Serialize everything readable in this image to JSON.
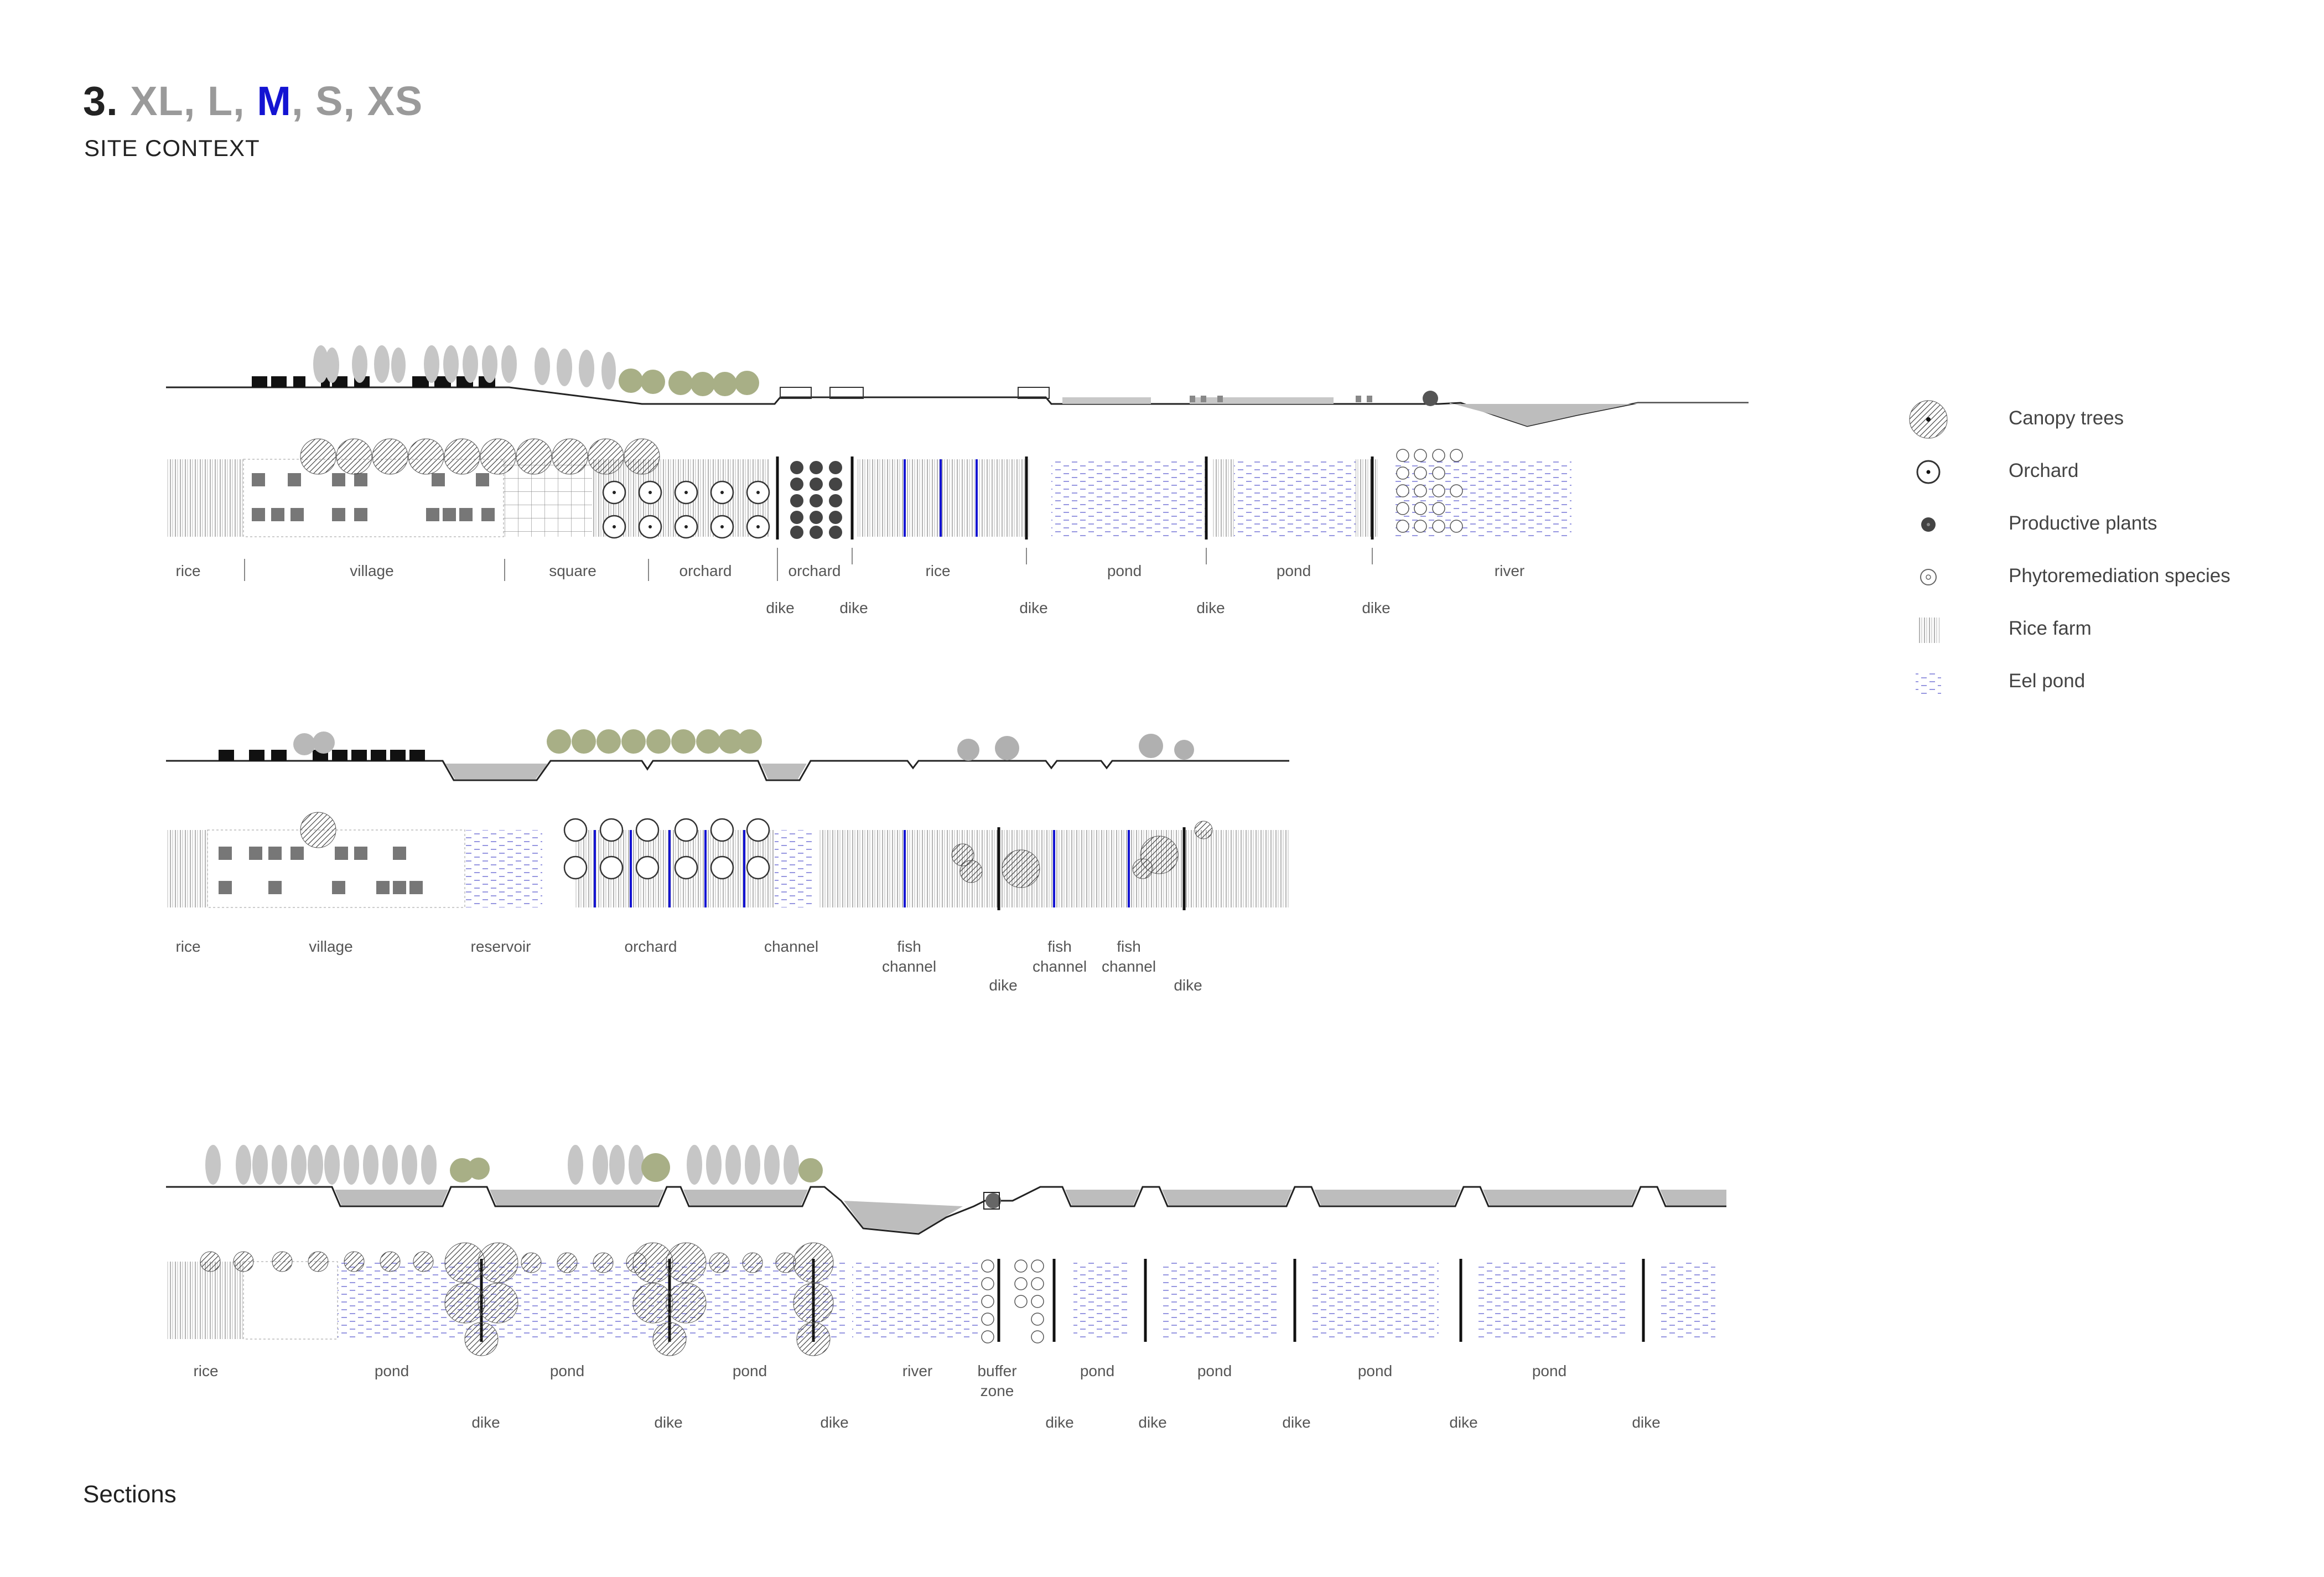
{
  "header": {
    "number": "3.",
    "sizes": [
      {
        "text": "XL",
        "active": false
      },
      {
        "text": "L",
        "active": false
      },
      {
        "text": "M",
        "active": true
      },
      {
        "text": "S",
        "active": false
      },
      {
        "text": "XS",
        "active": false
      }
    ],
    "separator": ", ",
    "subtitle": "SITE CONTEXT"
  },
  "footer": {
    "caption": "Sections"
  },
  "colors": {
    "accent": "#1414d2",
    "eel_pond": "#7b7bd8",
    "ink": "#222222",
    "muted": "#9a9a9a"
  },
  "legend": [
    {
      "icon": "canopy-trees-icon",
      "label": "Canopy trees"
    },
    {
      "icon": "orchard-icon",
      "label": "Orchard"
    },
    {
      "icon": "productive-plants-icon",
      "label": "Productive plants"
    },
    {
      "icon": "phytoremediation-species-icon",
      "label": "Phytoremediation species"
    },
    {
      "icon": "rice-farm-icon",
      "label": "Rice farm"
    },
    {
      "icon": "eel-pond-icon",
      "label": "Eel pond"
    }
  ],
  "sections": [
    {
      "zones": [
        "rice",
        "village",
        "square",
        "orchard",
        "orchard",
        "rice",
        "pond",
        "pond",
        "river"
      ],
      "dikes": [
        "dike",
        "dike",
        "dike",
        "dike",
        "dike"
      ]
    },
    {
      "zones": [
        "rice",
        "village",
        "reservoir",
        "orchard",
        "channel",
        "fish\nchannel",
        "fish\nchannel",
        "fish\nchannel"
      ],
      "dikes": [
        "dike",
        "dike"
      ]
    },
    {
      "zones": [
        "rice",
        "pond",
        "pond",
        "pond",
        "river",
        "buffer\nzone",
        "pond",
        "pond",
        "pond",
        "pond"
      ],
      "dikes": [
        "dike",
        "dike",
        "dike",
        "dike",
        "dike",
        "dike",
        "dike"
      ]
    }
  ]
}
